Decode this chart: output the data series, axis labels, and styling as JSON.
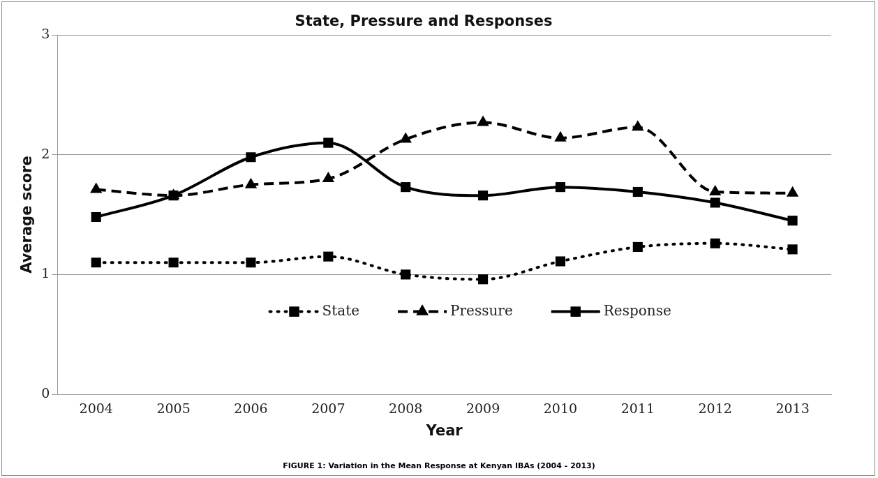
{
  "chart_data": {
    "type": "line",
    "title": "State, Pressure and Responses",
    "xlabel": "Year",
    "ylabel": "Average score",
    "categories": [
      "2004",
      "2005",
      "2006",
      "2007",
      "2008",
      "2009",
      "2010",
      "2011",
      "2012",
      "2013"
    ],
    "series": [
      {
        "name": "State",
        "color": "#000000",
        "marker": "square",
        "line_style": "dotted",
        "values": [
          1.1,
          1.1,
          1.1,
          1.15,
          1.0,
          0.96,
          1.11,
          1.23,
          1.26,
          1.21
        ]
      },
      {
        "name": "Pressure",
        "color": "#000000",
        "marker": "triangle",
        "line_style": "dashed",
        "values": [
          1.71,
          1.66,
          1.75,
          1.8,
          2.13,
          2.27,
          2.14,
          2.23,
          1.69,
          1.68
        ]
      },
      {
        "name": "Response",
        "color": "#000000",
        "marker": "square",
        "line_style": "solid",
        "values": [
          1.48,
          1.66,
          1.98,
          2.1,
          1.73,
          1.66,
          1.73,
          1.69,
          1.6,
          1.45
        ]
      }
    ],
    "ylim": [
      0,
      3
    ],
    "yticks": [
      0,
      1,
      2,
      3
    ],
    "grid": "y",
    "legend": "bottom",
    "annotations": [
      "FIGURE 1: Variation in the Mean Response at Kenyan IBAs (2004 - 2013)"
    ]
  }
}
